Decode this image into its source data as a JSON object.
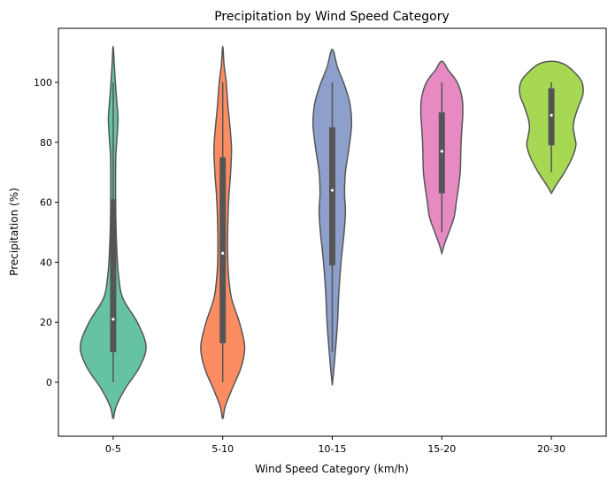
{
  "chart_data": {
    "type": "violin",
    "title": "Precipitation by Wind Speed Category",
    "xlabel": "Wind Speed Category (km/h)",
    "ylabel": "Precipitation (%)",
    "categories": [
      "0-5",
      "5-10",
      "10-15",
      "15-20",
      "20-30"
    ],
    "ylim": [
      -18,
      118
    ],
    "yticks": [
      0,
      20,
      40,
      60,
      80,
      100
    ],
    "grid": false,
    "legend": "none",
    "colors": [
      "#66c2a5",
      "#fc8d62",
      "#8da0cb",
      "#e78ac3",
      "#a6d854"
    ],
    "outline_color": "#555555",
    "violins": [
      {
        "category": "0-5",
        "box": {
          "whisker_low": 0,
          "q1": 10,
          "median": 21,
          "q3": 61,
          "whisker_high": 100
        },
        "density": [
          [
            -12,
            0.01
          ],
          [
            -8,
            0.07
          ],
          [
            -2,
            0.28
          ],
          [
            5,
            0.6
          ],
          [
            12,
            0.75
          ],
          [
            20,
            0.55
          ],
          [
            28,
            0.22
          ],
          [
            36,
            0.12
          ],
          [
            45,
            0.08
          ],
          [
            55,
            0.06
          ],
          [
            65,
            0.055
          ],
          [
            75,
            0.06
          ],
          [
            82,
            0.09
          ],
          [
            88,
            0.11
          ],
          [
            94,
            0.08
          ],
          [
            100,
            0.05
          ],
          [
            106,
            0.025
          ],
          [
            112,
            0.0
          ]
        ]
      },
      {
        "category": "5-10",
        "box": {
          "whisker_low": 0,
          "q1": 13,
          "median": 43,
          "q3": 75,
          "whisker_high": 100
        },
        "density": [
          [
            -12,
            0.01
          ],
          [
            -8,
            0.06
          ],
          [
            -2,
            0.22
          ],
          [
            5,
            0.42
          ],
          [
            12,
            0.5
          ],
          [
            20,
            0.38
          ],
          [
            28,
            0.2
          ],
          [
            36,
            0.13
          ],
          [
            45,
            0.11
          ],
          [
            55,
            0.12
          ],
          [
            62,
            0.14
          ],
          [
            70,
            0.18
          ],
          [
            78,
            0.2
          ],
          [
            86,
            0.16
          ],
          [
            92,
            0.12
          ],
          [
            100,
            0.08
          ],
          [
            106,
            0.03
          ],
          [
            112,
            0.0
          ]
        ]
      },
      {
        "category": "10-15",
        "box": {
          "whisker_low": 10,
          "q1": 39,
          "median": 64,
          "q3": 85,
          "whisker_high": 100
        },
        "density": [
          [
            -1,
            0.0
          ],
          [
            5,
            0.04
          ],
          [
            12,
            0.08
          ],
          [
            20,
            0.12
          ],
          [
            30,
            0.15
          ],
          [
            40,
            0.2
          ],
          [
            50,
            0.27
          ],
          [
            57,
            0.3
          ],
          [
            63,
            0.28
          ],
          [
            70,
            0.3
          ],
          [
            78,
            0.38
          ],
          [
            86,
            0.44
          ],
          [
            93,
            0.4
          ],
          [
            99,
            0.28
          ],
          [
            105,
            0.12
          ],
          [
            111,
            0.0
          ]
        ]
      },
      {
        "category": "15-20",
        "box": {
          "whisker_low": 50,
          "q1": 63,
          "median": 77,
          "q3": 90,
          "whisker_high": 100
        },
        "density": [
          [
            43,
            0.0
          ],
          [
            46,
            0.06
          ],
          [
            50,
            0.16
          ],
          [
            55,
            0.28
          ],
          [
            60,
            0.33
          ],
          [
            65,
            0.38
          ],
          [
            70,
            0.42
          ],
          [
            75,
            0.43
          ],
          [
            80,
            0.44
          ],
          [
            85,
            0.46
          ],
          [
            90,
            0.48
          ],
          [
            95,
            0.46
          ],
          [
            100,
            0.35
          ],
          [
            104,
            0.15
          ],
          [
            107,
            0.0
          ]
        ]
      },
      {
        "category": "20-30",
        "box": {
          "whisker_low": 70,
          "q1": 79,
          "median": 89,
          "q3": 98,
          "whisker_high": 100
        },
        "density": [
          [
            63,
            0.0
          ],
          [
            66,
            0.12
          ],
          [
            70,
            0.3
          ],
          [
            75,
            0.48
          ],
          [
            79,
            0.56
          ],
          [
            82,
            0.53
          ],
          [
            85,
            0.5
          ],
          [
            88,
            0.53
          ],
          [
            92,
            0.62
          ],
          [
            96,
            0.72
          ],
          [
            100,
            0.7
          ],
          [
            103,
            0.55
          ],
          [
            106,
            0.3
          ],
          [
            107,
            0.0
          ]
        ]
      }
    ]
  }
}
